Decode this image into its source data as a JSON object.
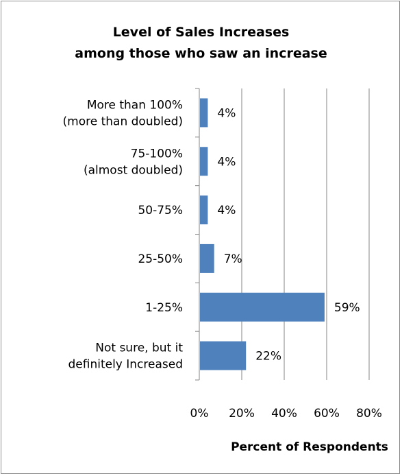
{
  "chart_data": {
    "type": "bar",
    "orientation": "horizontal",
    "title_lines": [
      "Level of Sales Increases",
      "among those who saw an increase"
    ],
    "categories": [
      [
        "More than 100%",
        "(more than doubled)"
      ],
      [
        "75-100%",
        "(almost doubled)"
      ],
      [
        "50-75%"
      ],
      [
        "25-50%"
      ],
      [
        "1-25%"
      ],
      [
        "Not sure, but it",
        "definitely Increased"
      ]
    ],
    "values": [
      4,
      4,
      4,
      7,
      59,
      22
    ],
    "value_labels": [
      "4%",
      "4%",
      "4%",
      "7%",
      "59%",
      "22%"
    ],
    "xlim": [
      0,
      80
    ],
    "x_ticks": [
      0,
      20,
      40,
      60,
      80
    ],
    "x_tick_labels": [
      "0%",
      "20%",
      "40%",
      "60%",
      "80%"
    ],
    "xlabel": "Percent of Respondents",
    "grid": "vertical",
    "legend": "none",
    "colors": {
      "bar": "#4f81bd",
      "grid": "#858585",
      "axis": "#858585"
    }
  }
}
